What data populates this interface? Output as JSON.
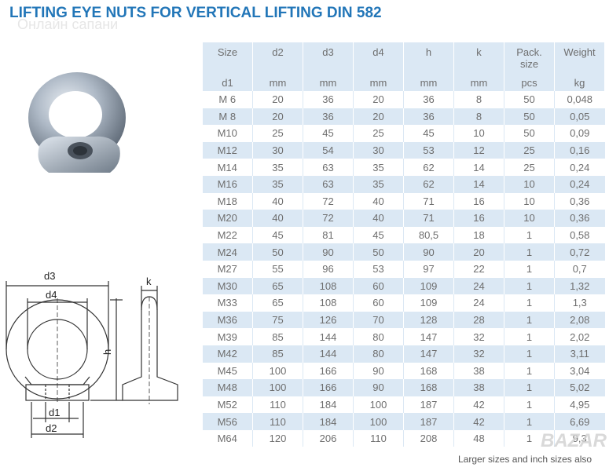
{
  "title": "LIFTING EYE NUTS FOR VERTICAL LIFTING DIN 582",
  "watermark": "Онлайн сапани",
  "brand": "BAZAR",
  "footnote": "Larger sizes and inch sizes also",
  "drawing_labels": {
    "d3": "d3",
    "d4": "d4",
    "h": "h",
    "k": "k",
    "d1": "d1",
    "d2": "d2"
  },
  "table": {
    "headers": [
      {
        "top": "Size",
        "bottom": "d1"
      },
      {
        "top": "d2",
        "bottom": "mm"
      },
      {
        "top": "d3",
        "bottom": "mm"
      },
      {
        "top": "d4",
        "bottom": "mm"
      },
      {
        "top": "h",
        "bottom": "mm"
      },
      {
        "top": "k",
        "bottom": "mm"
      },
      {
        "top": "Pack.\nsize",
        "bottom": "pcs"
      },
      {
        "top": "Weight",
        "bottom": "kg"
      }
    ],
    "rows": [
      [
        "M 6",
        "20",
        "36",
        "20",
        "36",
        "8",
        "50",
        "0,048"
      ],
      [
        "M 8",
        "20",
        "36",
        "20",
        "36",
        "8",
        "50",
        "0,05"
      ],
      [
        "M10",
        "25",
        "45",
        "25",
        "45",
        "10",
        "50",
        "0,09"
      ],
      [
        "M12",
        "30",
        "54",
        "30",
        "53",
        "12",
        "25",
        "0,16"
      ],
      [
        "M14",
        "35",
        "63",
        "35",
        "62",
        "14",
        "25",
        "0,24"
      ],
      [
        "M16",
        "35",
        "63",
        "35",
        "62",
        "14",
        "10",
        "0,24"
      ],
      [
        "M18",
        "40",
        "72",
        "40",
        "71",
        "16",
        "10",
        "0,36"
      ],
      [
        "M20",
        "40",
        "72",
        "40",
        "71",
        "16",
        "10",
        "0,36"
      ],
      [
        "M22",
        "45",
        "81",
        "45",
        "80,5",
        "18",
        "1",
        "0,58"
      ],
      [
        "M24",
        "50",
        "90",
        "50",
        "90",
        "20",
        "1",
        "0,72"
      ],
      [
        "M27",
        "55",
        "96",
        "53",
        "97",
        "22",
        "1",
        "0,7"
      ],
      [
        "M30",
        "65",
        "108",
        "60",
        "109",
        "24",
        "1",
        "1,32"
      ],
      [
        "M33",
        "65",
        "108",
        "60",
        "109",
        "24",
        "1",
        "1,3"
      ],
      [
        "M36",
        "75",
        "126",
        "70",
        "128",
        "28",
        "1",
        "2,08"
      ],
      [
        "M39",
        "85",
        "144",
        "80",
        "147",
        "32",
        "1",
        "2,02"
      ],
      [
        "M42",
        "85",
        "144",
        "80",
        "147",
        "32",
        "1",
        "3,11"
      ],
      [
        "M45",
        "100",
        "166",
        "90",
        "168",
        "38",
        "1",
        "3,04"
      ],
      [
        "M48",
        "100",
        "166",
        "90",
        "168",
        "38",
        "1",
        "5,02"
      ],
      [
        "M52",
        "110",
        "184",
        "100",
        "187",
        "42",
        "1",
        "4,95"
      ],
      [
        "M56",
        "110",
        "184",
        "100",
        "187",
        "42",
        "1",
        "6,69"
      ],
      [
        "M64",
        "120",
        "206",
        "110",
        "208",
        "48",
        "1",
        "9,3"
      ]
    ]
  }
}
